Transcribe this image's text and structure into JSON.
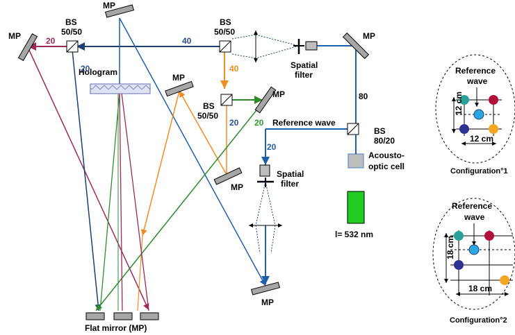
{
  "labels": {
    "mp": "MP",
    "bs": "BS",
    "bs_ratio": "50/50",
    "bs_ratio_80_20": "80/20",
    "hologram": "Hologram",
    "spatial": "Spatial",
    "filter": "filter",
    "reference_wave": "Reference wave",
    "reference": "Reference",
    "wave": "wave",
    "acousto": "Acousto-",
    "optic_cell": "optic cell",
    "laser": "l= 532 nm",
    "flat_mirror": "Flat mirror (MP)"
  },
  "beam_values": {
    "v80": "80",
    "v40_top": "40",
    "v40_orange": "40",
    "v20_maroon": "20",
    "v20_blue_left": "20",
    "v20_green": "20",
    "v20_blue_mid": "20",
    "v20_blue_bs": "20"
  },
  "configs": {
    "c1": {
      "caption": "Configuration°1",
      "dim_v": "12 cm",
      "dim_h": "12 cm"
    },
    "c2": {
      "caption": "Configuration°2",
      "dim_v": "18 cm",
      "dim_h": "18 cm"
    }
  },
  "colors": {
    "beam_blue": "#1f5faa",
    "beam_navy": "#1b3f73",
    "beam_maroon": "#9b2a5b",
    "beam_orange": "#f08b22",
    "beam_green": "#2e8b2e",
    "laser_green": "#22cc22",
    "mirror_gray": "#a6a6a6",
    "dot_teal": "#2aa198",
    "dot_red": "#b0103a",
    "dot_navy": "#2e3192",
    "dot_orange": "#f5a623",
    "dot_cyan": "#2aa7e0"
  }
}
